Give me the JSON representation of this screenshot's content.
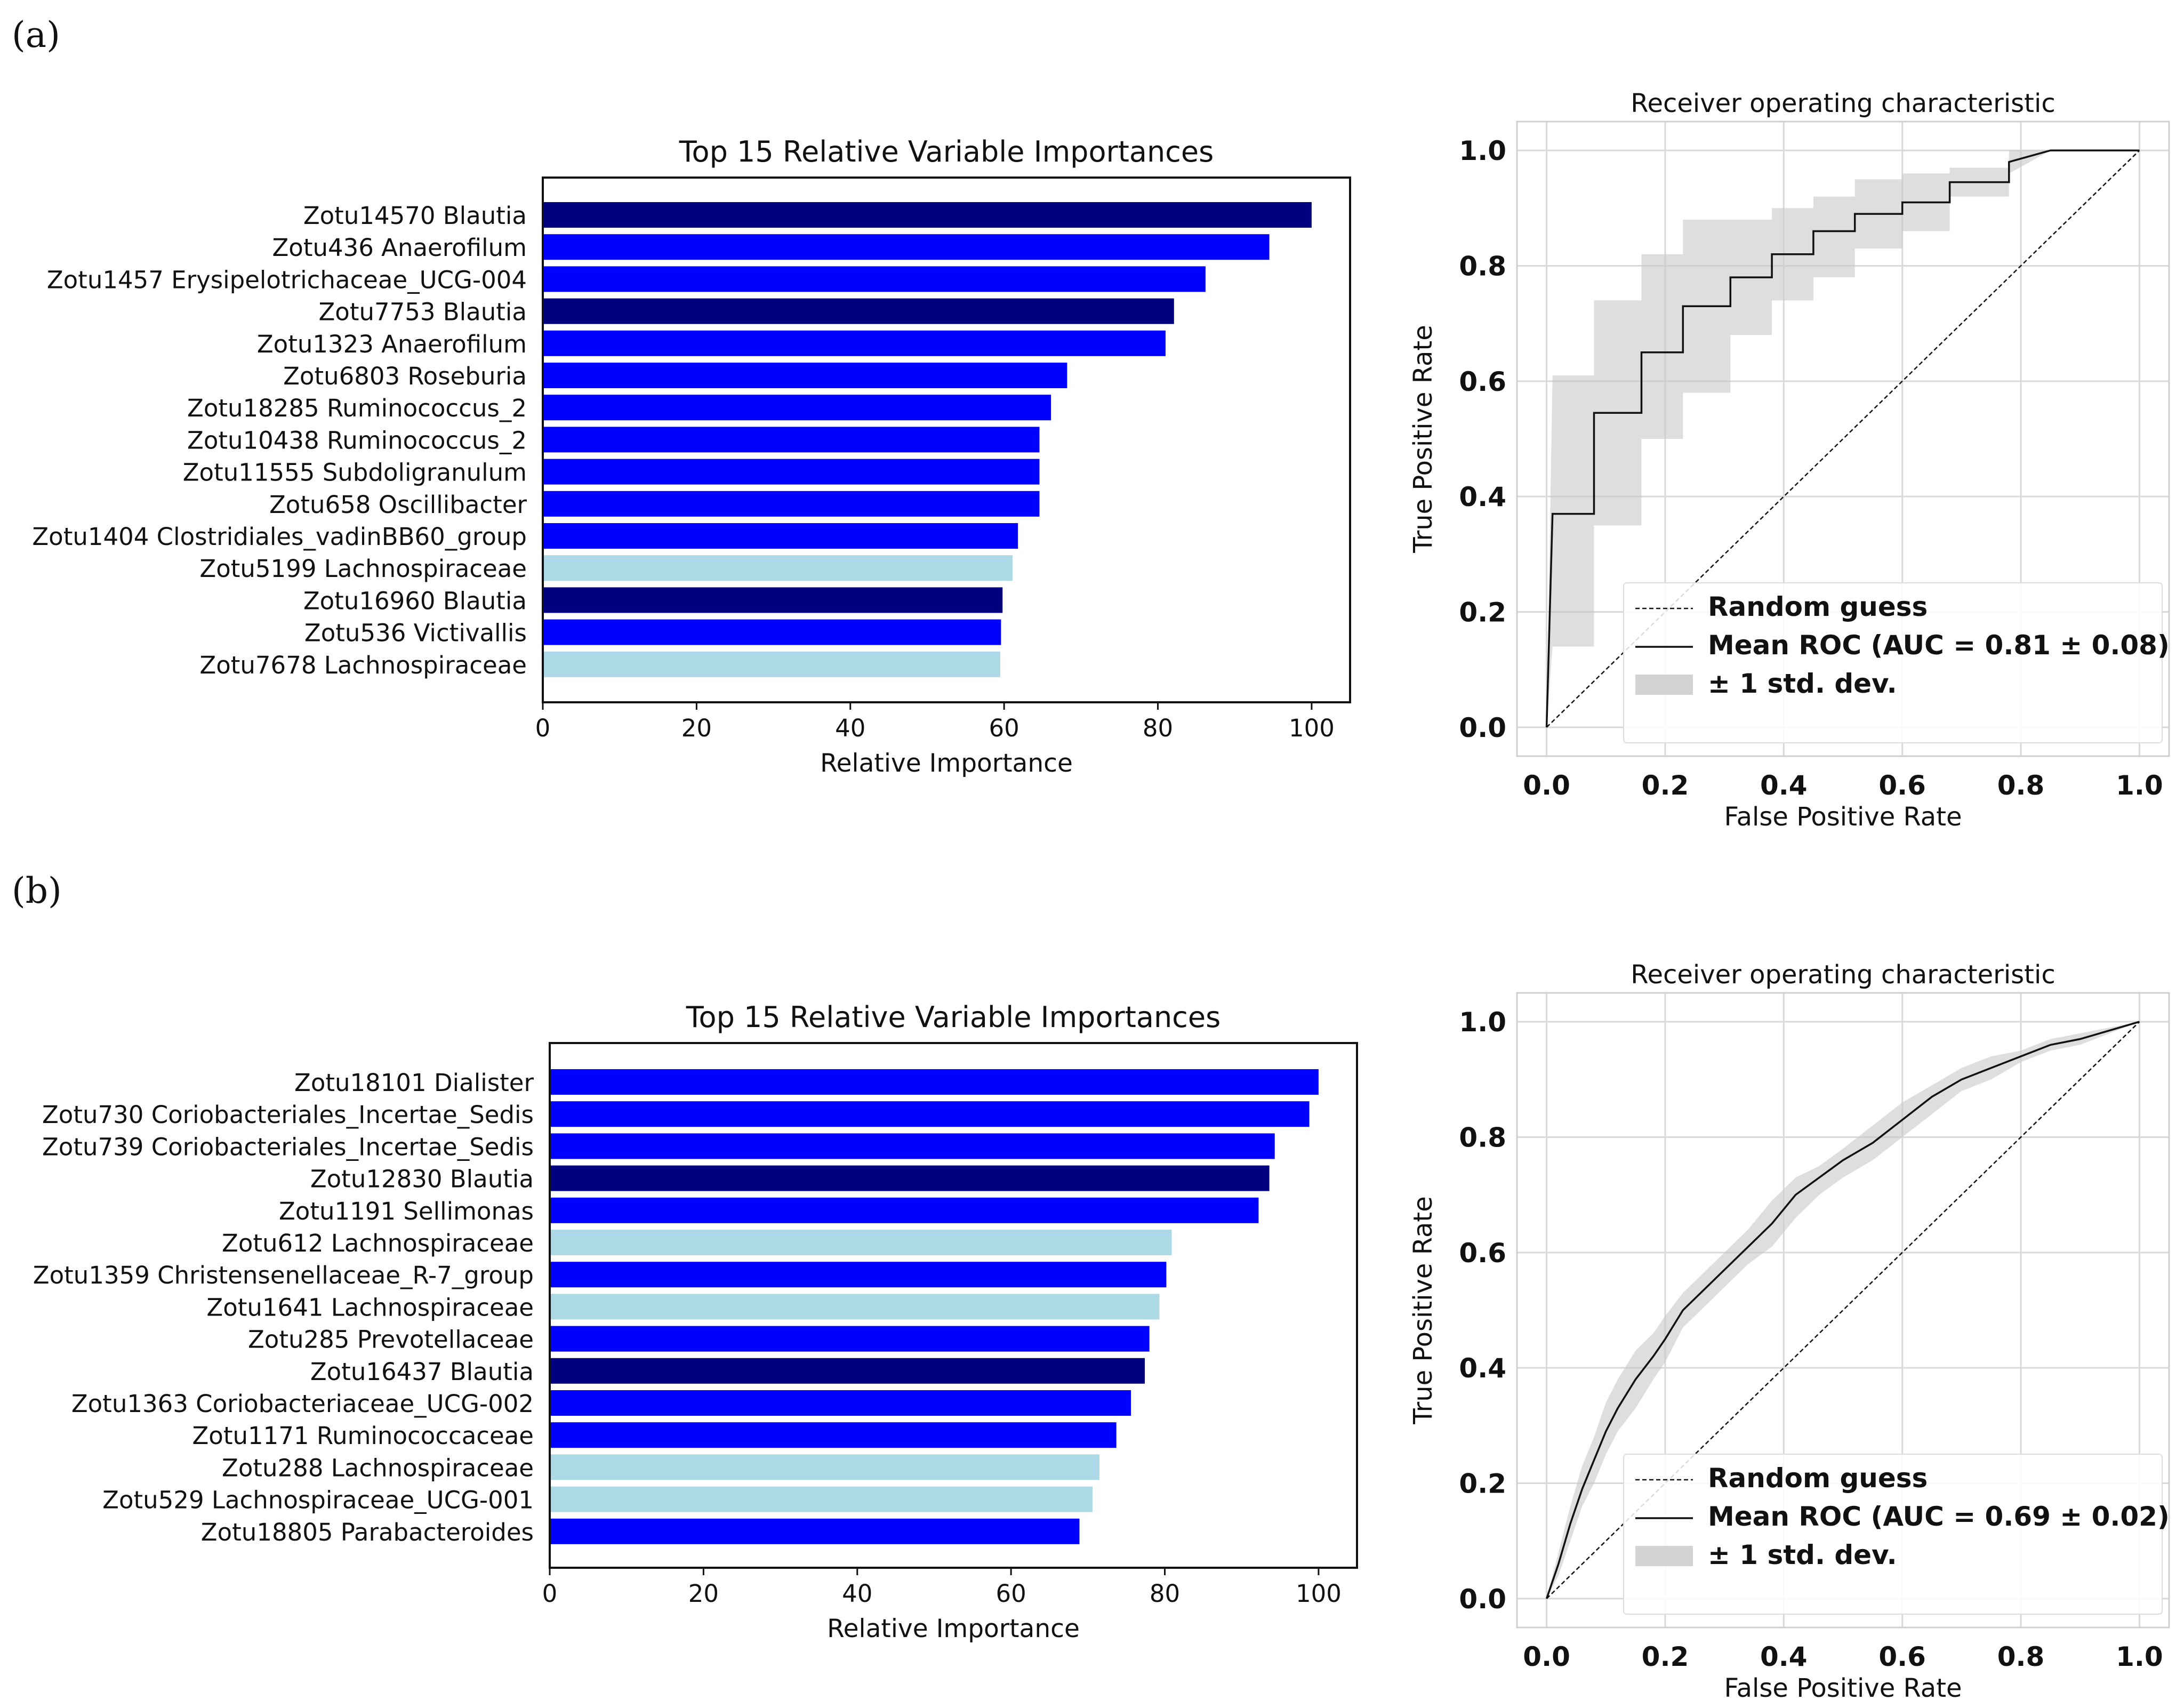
{
  "panels": [
    {
      "label": "(a)",
      "bar": {
        "type": "bar",
        "orientation": "horizontal",
        "title": "Top 15 Relative Variable Importances",
        "xlabel": "Relative Importance",
        "xlim": [
          0,
          105
        ],
        "xticks": [
          0,
          20,
          40,
          60,
          80,
          100
        ],
        "categories": [
          "Zotu14570 Blautia",
          "Zotu436 Anaerofilum",
          "Zotu1457 Erysipelotrichaceae_UCG-004",
          "Zotu7753 Blautia",
          "Zotu1323 Anaerofilum",
          "Zotu6803 Roseburia",
          "Zotu18285 Ruminococcus_2",
          "Zotu10438 Ruminococcus_2",
          "Zotu11555 Subdoligranulum",
          "Zotu658 Oscillibacter",
          "Zotu1404 Clostridiales_vadinBB60_group",
          "Zotu5199 Lachnospiraceae",
          "Zotu16960 Blautia",
          "Zotu536 Victivallis",
          "Zotu7678 Lachnospiraceae"
        ],
        "values": [
          100,
          94.5,
          86.2,
          82.1,
          81.0,
          68.2,
          66.1,
          64.6,
          64.6,
          64.6,
          61.8,
          61.1,
          59.8,
          59.6,
          59.5
        ],
        "colors": [
          "#00007f",
          "#0000ff",
          "#0000ff",
          "#00007f",
          "#0000ff",
          "#0000ff",
          "#0000ff",
          "#0000ff",
          "#0000ff",
          "#0000ff",
          "#0000ff",
          "#add8e6",
          "#00007f",
          "#0000ff",
          "#add8e6"
        ]
      },
      "roc": {
        "type": "line",
        "title": "Receiver operating characteristic",
        "xlabel": "False Positive Rate",
        "ylabel": "True Positive Rate",
        "xlim": [
          -0.05,
          1.05
        ],
        "ylim": [
          -0.05,
          1.05
        ],
        "xticks": [
          "0.0",
          "0.2",
          "0.4",
          "0.6",
          "0.8",
          "1.0"
        ],
        "yticks": [
          "0.0",
          "0.2",
          "0.4",
          "0.6",
          "0.8",
          "1.0"
        ],
        "grid": true,
        "legend_position": "lower right",
        "legend": [
          "Random guess",
          "Mean ROC (AUC = 0.81 ± 0.08)",
          "± 1 std. dev."
        ],
        "mean_x": [
          0,
          0.01,
          0.01,
          0.08,
          0.08,
          0.16,
          0.16,
          0.23,
          0.23,
          0.31,
          0.31,
          0.38,
          0.38,
          0.45,
          0.45,
          0.52,
          0.52,
          0.6,
          0.6,
          0.68,
          0.68,
          0.78,
          0.78,
          0.85,
          1.0
        ],
        "mean_y": [
          0,
          0.37,
          0.37,
          0.37,
          0.545,
          0.545,
          0.65,
          0.65,
          0.73,
          0.73,
          0.78,
          0.78,
          0.82,
          0.82,
          0.86,
          0.86,
          0.89,
          0.89,
          0.91,
          0.91,
          0.945,
          0.945,
          0.98,
          1.0,
          1.0
        ],
        "band_upper": [
          0,
          0.61,
          0.61,
          0.61,
          0.74,
          0.74,
          0.82,
          0.82,
          0.88,
          0.88,
          0.88,
          0.88,
          0.9,
          0.9,
          0.92,
          0.92,
          0.95,
          0.95,
          0.96,
          0.96,
          0.97,
          0.97,
          1.0,
          1.0,
          1.0
        ],
        "band_lower": [
          0,
          0.14,
          0.14,
          0.14,
          0.35,
          0.35,
          0.5,
          0.5,
          0.58,
          0.58,
          0.68,
          0.68,
          0.74,
          0.74,
          0.78,
          0.78,
          0.83,
          0.83,
          0.86,
          0.86,
          0.92,
          0.92,
          0.96,
          1.0,
          1.0
        ]
      }
    },
    {
      "label": "(b)",
      "bar": {
        "type": "bar",
        "orientation": "horizontal",
        "title": "Top 15 Relative Variable Importances",
        "xlabel": "Relative Importance",
        "xlim": [
          0,
          105
        ],
        "xticks": [
          0,
          20,
          40,
          60,
          80,
          100
        ],
        "categories": [
          "Zotu18101 Dialister",
          "Zotu730 Coriobacteriales_Incertae_Sedis",
          "Zotu739 Coriobacteriales_Incertae_Sedis",
          "Zotu12830 Blautia",
          "Zotu1191 Sellimonas",
          "Zotu612 Lachnospiraceae",
          "Zotu1359 Christensenellaceae_R-7_group",
          "Zotu1641 Lachnospiraceae",
          "Zotu285 Prevotellaceae",
          "Zotu16437 Blautia",
          "Zotu1363 Coriobacteriaceae_UCG-002",
          "Zotu1171 Ruminococcaceae",
          "Zotu288 Lachnospiraceae",
          "Zotu529 Lachnospiraceae_UCG-001",
          "Zotu18805 Parabacteroides"
        ],
        "values": [
          100,
          98.8,
          94.3,
          93.6,
          92.2,
          80.9,
          80.2,
          79.3,
          78.0,
          77.4,
          75.6,
          73.7,
          71.5,
          70.6,
          68.9
        ],
        "colors": [
          "#0000ff",
          "#0000ff",
          "#0000ff",
          "#00007f",
          "#0000ff",
          "#add8e6",
          "#0000ff",
          "#add8e6",
          "#0000ff",
          "#00007f",
          "#0000ff",
          "#0000ff",
          "#add8e6",
          "#add8e6",
          "#0000ff"
        ]
      },
      "roc": {
        "type": "line",
        "title": "Receiver operating characteristic",
        "xlabel": "False Positive Rate",
        "ylabel": "True Positive Rate",
        "xlim": [
          -0.05,
          1.05
        ],
        "ylim": [
          -0.05,
          1.05
        ],
        "xticks": [
          "0.0",
          "0.2",
          "0.4",
          "0.6",
          "0.8",
          "1.0"
        ],
        "yticks": [
          "0.0",
          "0.2",
          "0.4",
          "0.6",
          "0.8",
          "1.0"
        ],
        "grid": true,
        "legend_position": "lower right",
        "legend": [
          "Random guess",
          "Mean ROC (AUC = 0.69 ± 0.02)",
          "± 1 std. dev."
        ],
        "mean_x": [
          0,
          0.02,
          0.04,
          0.06,
          0.08,
          0.1,
          0.12,
          0.15,
          0.18,
          0.2,
          0.23,
          0.26,
          0.3,
          0.34,
          0.38,
          0.42,
          0.46,
          0.5,
          0.55,
          0.6,
          0.65,
          0.7,
          0.75,
          0.8,
          0.85,
          0.9,
          0.95,
          1.0
        ],
        "mean_y": [
          0,
          0.06,
          0.13,
          0.19,
          0.24,
          0.29,
          0.33,
          0.38,
          0.42,
          0.45,
          0.5,
          0.53,
          0.57,
          0.61,
          0.65,
          0.7,
          0.73,
          0.76,
          0.79,
          0.83,
          0.87,
          0.9,
          0.92,
          0.94,
          0.96,
          0.97,
          0.985,
          1.0
        ],
        "band_upper": [
          0,
          0.08,
          0.16,
          0.23,
          0.28,
          0.34,
          0.38,
          0.43,
          0.46,
          0.49,
          0.53,
          0.56,
          0.6,
          0.64,
          0.69,
          0.73,
          0.75,
          0.78,
          0.82,
          0.86,
          0.89,
          0.92,
          0.94,
          0.95,
          0.97,
          0.98,
          0.99,
          1.0
        ],
        "band_lower": [
          0,
          0.04,
          0.1,
          0.16,
          0.2,
          0.25,
          0.29,
          0.33,
          0.38,
          0.41,
          0.47,
          0.5,
          0.54,
          0.58,
          0.61,
          0.66,
          0.7,
          0.73,
          0.76,
          0.8,
          0.84,
          0.88,
          0.9,
          0.93,
          0.95,
          0.96,
          0.98,
          1.0
        ]
      }
    }
  ]
}
